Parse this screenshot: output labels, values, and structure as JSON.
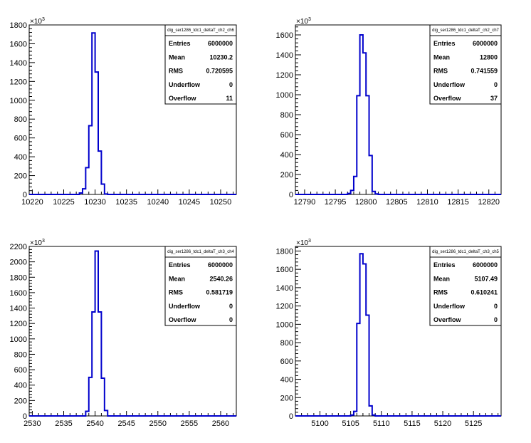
{
  "chart_data": [
    {
      "type": "histogram",
      "xlim": [
        10219.5,
        10252.5
      ],
      "ylim": [
        0,
        1800
      ],
      "y_multiplier": "×10",
      "y_exponent": "3",
      "xticks": [
        10220,
        10225,
        10230,
        10235,
        10240,
        10245,
        10250
      ],
      "yticks": [
        0,
        200,
        400,
        600,
        800,
        1000,
        1200,
        1400,
        1600,
        1800
      ],
      "bins": {
        "edges": [
          10227.5,
          10228,
          10228.5,
          10229,
          10229.5,
          10230,
          10230.5,
          10231,
          10231.5,
          10232
        ],
        "values": [
          15,
          60,
          285,
          730,
          1715,
          1300,
          460,
          110,
          5
        ]
      },
      "stats": {
        "title": "dig_ser1286_tdc1_deltaT_ch2_ch6",
        "rows": [
          {
            "label": "Entries",
            "value": "6000000"
          },
          {
            "label": "Mean",
            "value": "10230.2"
          },
          {
            "label": "RMS",
            "value": "0.720595"
          },
          {
            "label": "Underflow",
            "value": "0"
          },
          {
            "label": "Overflow",
            "value": "11"
          }
        ]
      }
    },
    {
      "type": "histogram",
      "xlim": [
        12788.5,
        12822
      ],
      "ylim": [
        0,
        1700
      ],
      "y_multiplier": "×10",
      "y_exponent": "3",
      "xticks": [
        12790,
        12795,
        12800,
        12805,
        12810,
        12815,
        12820
      ],
      "yticks": [
        0,
        200,
        400,
        600,
        800,
        1000,
        1200,
        1400,
        1600
      ],
      "bins": {
        "edges": [
          12797,
          12797.5,
          12798,
          12798.5,
          12799,
          12799.5,
          12800,
          12800.5,
          12801,
          12801.5,
          12802
        ],
        "values": [
          10,
          40,
          180,
          990,
          1600,
          1420,
          990,
          390,
          30,
          5
        ]
      },
      "stats": {
        "title": "dig_ser1286_tdc1_deltaT_ch2_ch7",
        "rows": [
          {
            "label": "Entries",
            "value": "6000000"
          },
          {
            "label": "Mean",
            "value": "12800"
          },
          {
            "label": "RMS",
            "value": "0.741559"
          },
          {
            "label": "Underflow",
            "value": "0"
          },
          {
            "label": "Overflow",
            "value": "37"
          }
        ]
      }
    },
    {
      "type": "histogram",
      "xlim": [
        2529.5,
        2562.5
      ],
      "ylim": [
        0,
        2200
      ],
      "y_multiplier": "×10",
      "y_exponent": "3",
      "xticks": [
        2530,
        2535,
        2540,
        2545,
        2550,
        2555,
        2560
      ],
      "yticks": [
        0,
        200,
        400,
        600,
        800,
        1000,
        1200,
        1400,
        1600,
        1800,
        2000,
        2200
      ],
      "bins": {
        "edges": [
          2538.5,
          2539,
          2539.5,
          2540,
          2540.5,
          2541,
          2541.5,
          2542
        ],
        "values": [
          60,
          500,
          1350,
          2140,
          1350,
          490,
          70
        ]
      },
      "stats": {
        "title": "dig_ser1286_tdc1_deltaT_ch3_ch4",
        "rows": [
          {
            "label": "Entries",
            "value": "6000000"
          },
          {
            "label": "Mean",
            "value": "2540.26"
          },
          {
            "label": "RMS",
            "value": "0.581719"
          },
          {
            "label": "Underflow",
            "value": "0"
          },
          {
            "label": "Overflow",
            "value": "0"
          }
        ]
      }
    },
    {
      "type": "histogram",
      "xlim": [
        5096,
        5129.5
      ],
      "ylim": [
        0,
        1850
      ],
      "y_multiplier": "×10",
      "y_exponent": "3",
      "xticks": [
        5100,
        5105,
        5110,
        5115,
        5120,
        5125
      ],
      "yticks": [
        0,
        200,
        400,
        600,
        800,
        1000,
        1200,
        1400,
        1600,
        1800
      ],
      "bins": {
        "edges": [
          5105,
          5105.5,
          5106,
          5106.5,
          5107,
          5107.5,
          5108,
          5108.5,
          5109,
          5109.5
        ],
        "values": [
          10,
          50,
          1010,
          1770,
          1660,
          1100,
          110,
          10,
          0
        ]
      },
      "stats": {
        "title": "dig_ser1286_tdc1_deltaT_ch3_ch5",
        "rows": [
          {
            "label": "Entries",
            "value": "6000000"
          },
          {
            "label": "Mean",
            "value": "5107.49"
          },
          {
            "label": "RMS",
            "value": "0.610241"
          },
          {
            "label": "Underflow",
            "value": "0"
          },
          {
            "label": "Overflow",
            "value": "0"
          }
        ]
      }
    }
  ]
}
